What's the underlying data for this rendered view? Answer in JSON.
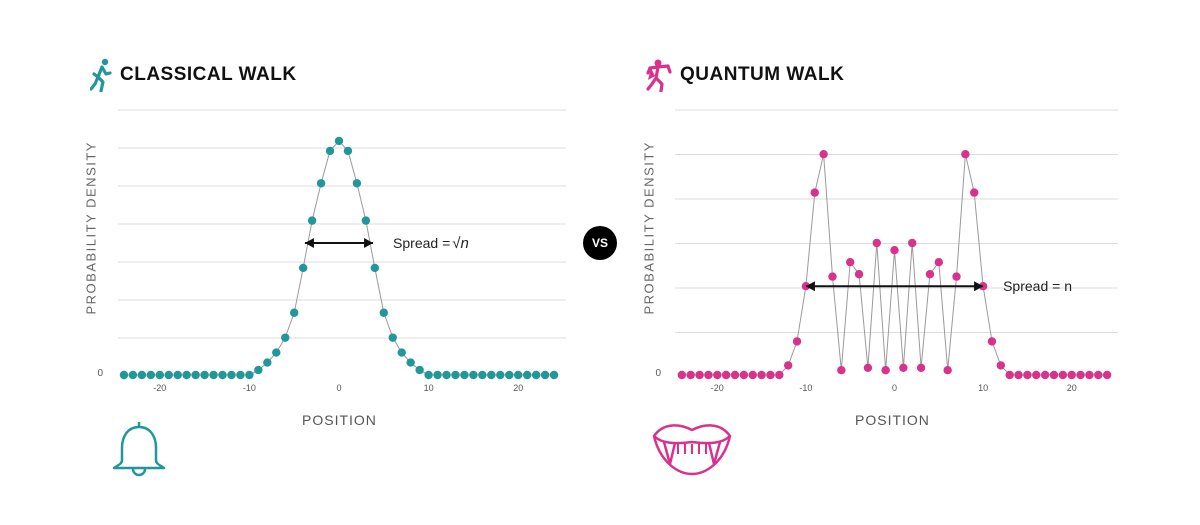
{
  "vs_label": "VS",
  "colors": {
    "classical": "#22979b",
    "quantum": "#d9328c",
    "line": "#9a9a9a",
    "grid": "#dddddd"
  },
  "icons": {
    "classical_title": "walking-person-icon",
    "quantum_title": "vampire-figure-icon",
    "classical_bottom": "bell-icon",
    "quantum_bottom": "vampire-fangs-icon"
  },
  "chart_data": [
    {
      "type": "scatter",
      "title": "CLASSICAL WALK",
      "xlabel": "POSITION",
      "ylabel": "PROBABILITY DENSITY",
      "xlim": [
        -25,
        25
      ],
      "ylim": [
        0,
        1.0
      ],
      "xticks": [
        -20,
        -10,
        0,
        10,
        20
      ],
      "xtick_labels": [
        "-20",
        "-10",
        "0",
        "10",
        "20"
      ],
      "ytick_label": "0",
      "grid": true,
      "connect_points": true,
      "annotation": {
        "text": "Spread = ",
        "math": "√n",
        "from_x": -3.8,
        "to_x": 3.8,
        "y": 0.53
      },
      "x": [
        -24,
        -23,
        -22,
        -21,
        -20,
        -19,
        -18,
        -17,
        -16,
        -15,
        -14,
        -13,
        -12,
        -11,
        -10,
        -9,
        -8,
        -7,
        -6,
        -5,
        -4,
        -3,
        -2,
        -1,
        0,
        1,
        2,
        3,
        4,
        5,
        6,
        7,
        8,
        9,
        10,
        11,
        12,
        13,
        14,
        15,
        16,
        17,
        18,
        19,
        20,
        21,
        22,
        23,
        24
      ],
      "y": [
        0,
        0,
        0,
        0,
        0,
        0,
        0,
        0,
        0,
        0,
        0,
        0,
        0,
        0,
        0,
        0.02,
        0.05,
        0.09,
        0.15,
        0.25,
        0.43,
        0.62,
        0.77,
        0.9,
        0.94,
        0.9,
        0.77,
        0.62,
        0.43,
        0.25,
        0.15,
        0.09,
        0.05,
        0.02,
        0,
        0,
        0,
        0,
        0,
        0,
        0,
        0,
        0,
        0,
        0,
        0,
        0,
        0,
        0
      ]
    },
    {
      "type": "scatter",
      "title": "QUANTUM WALK",
      "xlabel": "POSITION",
      "ylabel": "PROBABILITY DENSITY",
      "xlim": [
        -25,
        25
      ],
      "ylim": [
        0,
        1.0
      ],
      "xticks": [
        -20,
        -10,
        0,
        10,
        20
      ],
      "xtick_labels": [
        "-20",
        "-10",
        "0",
        "10",
        "20"
      ],
      "ytick_label": "0",
      "grid": true,
      "connect_points": true,
      "annotation": {
        "text": "Spread = n",
        "math": "",
        "from_x": -10,
        "to_x": 10,
        "y": 0.37
      },
      "x": [
        -24,
        -23,
        -22,
        -21,
        -20,
        -19,
        -18,
        -17,
        -16,
        -15,
        -14,
        -13,
        -12,
        -11,
        -10,
        -9,
        -8,
        -7,
        -6,
        -5,
        -4,
        -3,
        -2,
        -1,
        0,
        1,
        2,
        3,
        4,
        5,
        6,
        7,
        8,
        9,
        10,
        11,
        12,
        13,
        14,
        15,
        16,
        17,
        18,
        19,
        20,
        21,
        22,
        23,
        24
      ],
      "y": [
        0,
        0,
        0,
        0,
        0,
        0,
        0,
        0,
        0,
        0,
        0,
        0,
        0.04,
        0.14,
        0.37,
        0.76,
        0.92,
        0.41,
        0.02,
        0.47,
        0.42,
        0.03,
        0.55,
        0.02,
        0.52,
        0.03,
        0.55,
        0.03,
        0.42,
        0.47,
        0.02,
        0.41,
        0.92,
        0.76,
        0.37,
        0.14,
        0.04,
        0,
        0,
        0,
        0,
        0,
        0,
        0,
        0,
        0,
        0,
        0,
        0
      ]
    }
  ]
}
